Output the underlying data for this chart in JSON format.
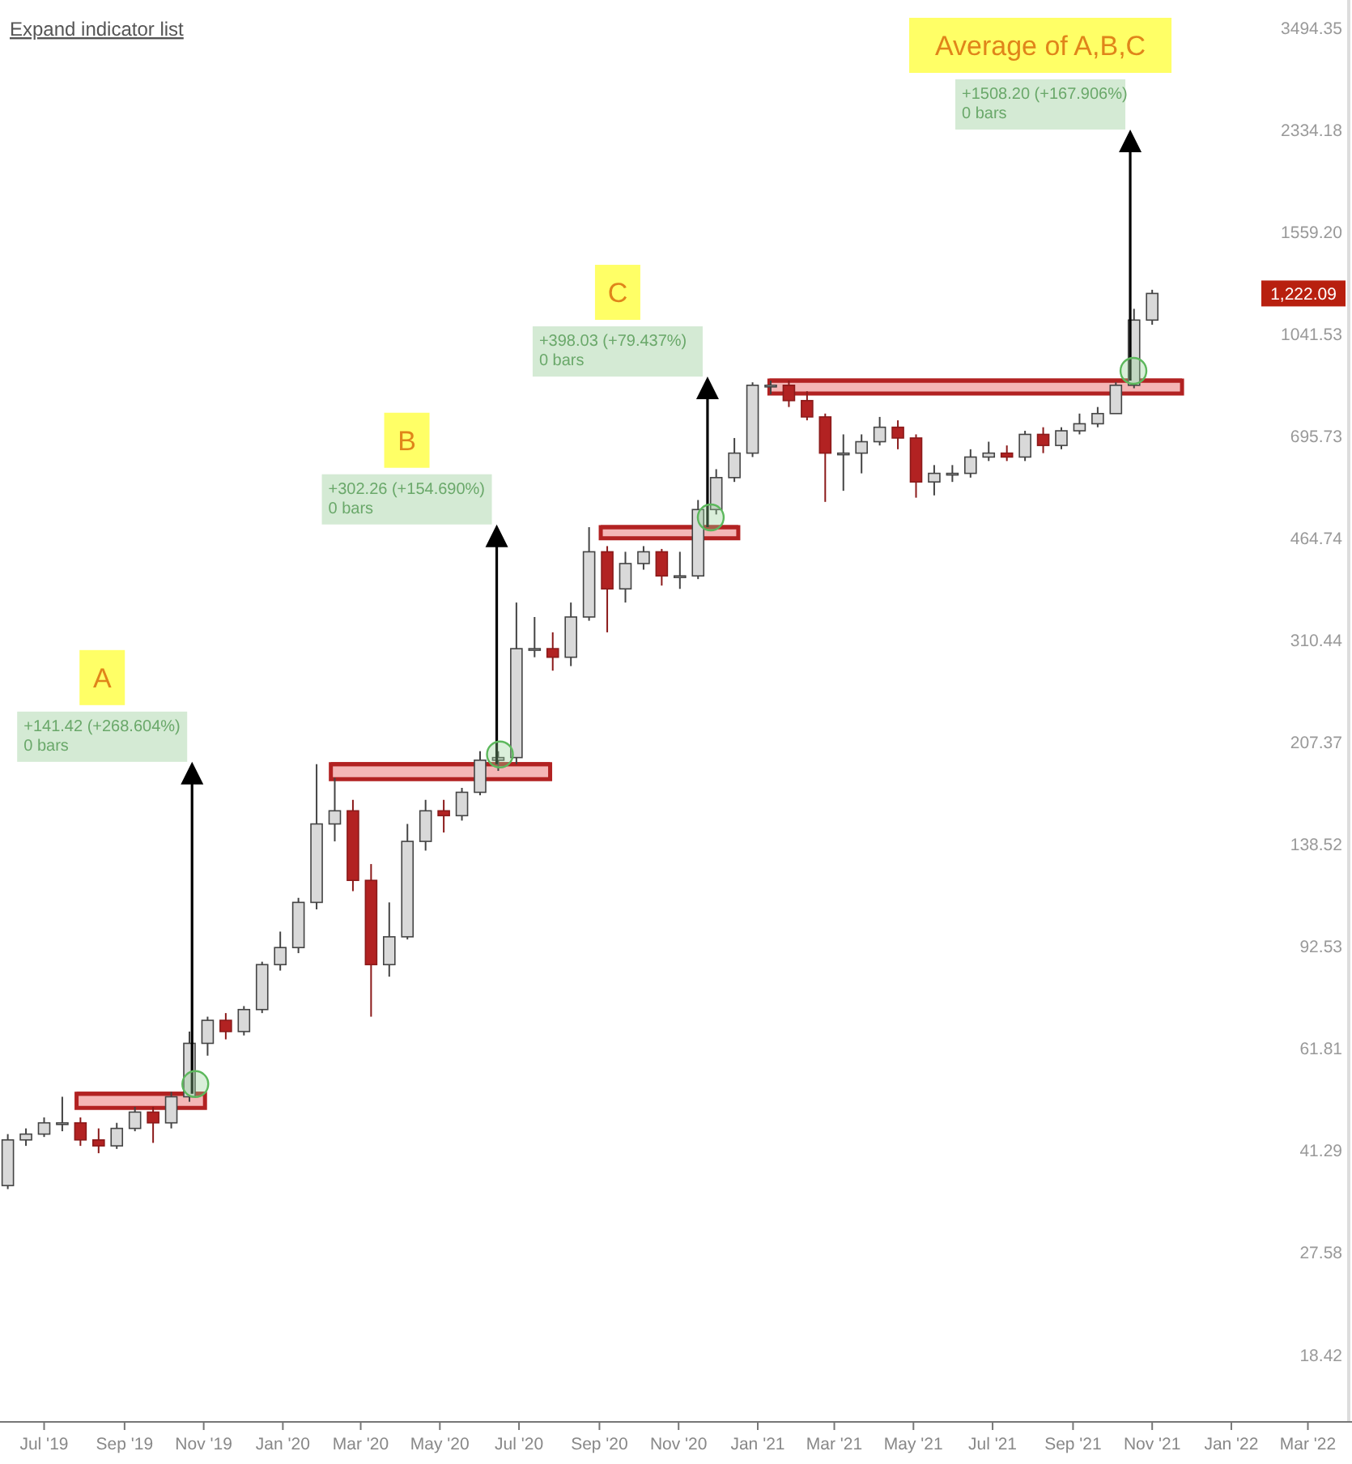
{
  "chart_data": {
    "type": "candlestick",
    "x": [
      "2019-06-03",
      "2019-06-17",
      "2019-07-01",
      "2019-07-15",
      "2019-07-29",
      "2019-08-12",
      "2019-08-26",
      "2019-09-09",
      "2019-09-23",
      "2019-10-07",
      "2019-10-21",
      "2019-11-04",
      "2019-11-18",
      "2019-12-02",
      "2019-12-16",
      "2019-12-30",
      "2020-01-13",
      "2020-01-27",
      "2020-02-10",
      "2020-02-24",
      "2020-03-09",
      "2020-03-23",
      "2020-04-06",
      "2020-04-20",
      "2020-05-04",
      "2020-05-18",
      "2020-06-01",
      "2020-06-15",
      "2020-06-29",
      "2020-07-13",
      "2020-07-27",
      "2020-08-10",
      "2020-08-24",
      "2020-09-07",
      "2020-09-21",
      "2020-10-05",
      "2020-10-19",
      "2020-11-02",
      "2020-11-16",
      "2020-11-30",
      "2020-12-14",
      "2020-12-28",
      "2021-01-11",
      "2021-01-25",
      "2021-02-08",
      "2021-02-22",
      "2021-03-08",
      "2021-03-22",
      "2021-04-05",
      "2021-04-19",
      "2021-05-03",
      "2021-05-17",
      "2021-05-31",
      "2021-06-14",
      "2021-06-28",
      "2021-07-12",
      "2021-07-26",
      "2021-08-09",
      "2021-08-23",
      "2021-09-06",
      "2021-09-20",
      "2021-10-04",
      "2021-10-18",
      "2021-11-01"
    ],
    "ohlc": [
      [
        35.9,
        44,
        35.4,
        43
      ],
      [
        43,
        45,
        42,
        44
      ],
      [
        44,
        47,
        43.5,
        46
      ],
      [
        46,
        51,
        44.5,
        46
      ],
      [
        46,
        47,
        42,
        43
      ],
      [
        43,
        45,
        40.8,
        42
      ],
      [
        42,
        46,
        41.5,
        45
      ],
      [
        45,
        49,
        44.5,
        48
      ],
      [
        48,
        49,
        42.5,
        46
      ],
      [
        46,
        52,
        45,
        51
      ],
      [
        51,
        66,
        50,
        63
      ],
      [
        63,
        70,
        60,
        69
      ],
      [
        69,
        71,
        64,
        66
      ],
      [
        66,
        73,
        65,
        72
      ],
      [
        72,
        87,
        71,
        86
      ],
      [
        86,
        98,
        84,
        92
      ],
      [
        92,
        112,
        90,
        110
      ],
      [
        110,
        190,
        107,
        150
      ],
      [
        150,
        180,
        140,
        158
      ],
      [
        158,
        165,
        115,
        120
      ],
      [
        120,
        128,
        70,
        86
      ],
      [
        86,
        110,
        82,
        96
      ],
      [
        96,
        150,
        95,
        140
      ],
      [
        140,
        165,
        135,
        158
      ],
      [
        158,
        165,
        145,
        155
      ],
      [
        155,
        173,
        152,
        170
      ],
      [
        170,
        200,
        168,
        193
      ],
      [
        193,
        200,
        185,
        195
      ],
      [
        195,
        360,
        190,
        300
      ],
      [
        300,
        340,
        290,
        300
      ],
      [
        300,
        320,
        275,
        290
      ],
      [
        290,
        360,
        280,
        340
      ],
      [
        340,
        485,
        335,
        440
      ],
      [
        440,
        450,
        320,
        380
      ],
      [
        380,
        440,
        360,
        420
      ],
      [
        420,
        450,
        410,
        440
      ],
      [
        440,
        445,
        385,
        400
      ],
      [
        400,
        440,
        380,
        400
      ],
      [
        400,
        540,
        395,
        520
      ],
      [
        520,
        610,
        510,
        590
      ],
      [
        590,
        690,
        580,
        650
      ],
      [
        650,
        860,
        640,
        850
      ],
      [
        850,
        866,
        820,
        850
      ],
      [
        850,
        866,
        780,
        800
      ],
      [
        800,
        830,
        740,
        750
      ],
      [
        750,
        760,
        536,
        650
      ],
      [
        650,
        700,
        560,
        650
      ],
      [
        650,
        700,
        600,
        680
      ],
      [
        680,
        750,
        670,
        720
      ],
      [
        720,
        740,
        660,
        690
      ],
      [
        690,
        700,
        545,
        580
      ],
      [
        580,
        620,
        550,
        600
      ],
      [
        600,
        620,
        580,
        600
      ],
      [
        600,
        660,
        590,
        640
      ],
      [
        640,
        680,
        630,
        650
      ],
      [
        650,
        670,
        630,
        640
      ],
      [
        640,
        710,
        630,
        700
      ],
      [
        700,
        720,
        650,
        670
      ],
      [
        670,
        720,
        660,
        710
      ],
      [
        710,
        760,
        700,
        730
      ],
      [
        730,
        780,
        720,
        760
      ],
      [
        760,
        860,
        760,
        850
      ],
      [
        850,
        1150,
        840,
        1100
      ],
      [
        1100,
        1240,
        1080,
        1222.09
      ]
    ],
    "series": [
      {
        "type": "line",
        "color": "#b22222",
        "x": [
          "2019-07-26",
          "2019-11-02"
        ],
        "values": [
          51.6,
          51.6
        ],
        "lower": [
          48.8,
          48.8
        ],
        "upper": [
          51.6,
          51.6
        ]
      },
      {
        "type": "line",
        "color": "#b22222",
        "x": [
          "2020-02-07",
          "2020-07-25"
        ],
        "values": [
          190,
          190
        ],
        "lower": [
          179,
          179
        ],
        "upper": [
          190,
          190
        ]
      },
      {
        "type": "line",
        "color": "#b22222",
        "x": [
          "2020-09-02",
          "2020-12-17"
        ],
        "values": [
          485,
          485
        ],
        "lower": [
          464,
          464
        ],
        "upper": [
          485,
          485
        ]
      },
      {
        "type": "line",
        "color": "#b22222",
        "x": [
          "2021-01-10",
          "2021-11-24"
        ],
        "values": [
          866,
          866
        ],
        "lower": [
          823,
          823
        ],
        "upper": [
          866,
          866
        ]
      }
    ],
    "annotations": [
      "Expand indicator list",
      "A",
      "+141.42 (+268.604%)\n0 bars",
      "B",
      "+302.26 (+154.690%)\n0 bars",
      "C",
      "+398.03 (+79.437%)\n0 bars",
      "Average of A,B,C",
      "+1508.20 (+167.906%)\n0 bars",
      "1,222.09"
    ],
    "log": true,
    "ylim": [
      14.1,
      3900
    ],
    "yticks": [
      18.42,
      27.58,
      41.29,
      61.81,
      92.53,
      138.52,
      207.37,
      310.44,
      464.74,
      695.73,
      1041.53,
      {
        "value": 1559.2,
        "label": "1559.20"
      },
      2334.18,
      3494.35
    ],
    "xlim": [
      "2019-05-28",
      "2022-04-04"
    ],
    "xticks": [
      {
        "value": "2019-07-01",
        "label": "Jul '19"
      },
      {
        "value": "2019-09-01",
        "label": "Sep '19"
      },
      {
        "value": "2019-11-01",
        "label": "Nov '19"
      },
      {
        "value": "2020-01-01",
        "label": "Jan '20"
      },
      {
        "value": "2020-03-01",
        "label": "Mar '20"
      },
      {
        "value": "2020-05-01",
        "label": "May '20"
      },
      {
        "value": "2020-07-01",
        "label": "Jul '20"
      },
      {
        "value": "2020-09-01",
        "label": "Sep '20"
      },
      {
        "value": "2020-11-01",
        "label": "Nov '20"
      },
      {
        "value": "2021-01-01",
        "label": "Jan '21"
      },
      {
        "value": "2021-03-01",
        "label": "Mar '21"
      },
      {
        "value": "2021-05-01",
        "label": "May '21"
      },
      {
        "value": "2021-07-01",
        "label": "Jul '21"
      },
      {
        "value": "2021-09-01",
        "label": "Sep '21"
      },
      {
        "value": "2021-11-01",
        "label": "Nov '21"
      },
      {
        "value": "2022-01-01",
        "label": "Jan '22"
      },
      {
        "value": "2022-03-01",
        "label": "Mar '22"
      }
    ]
  }
}
